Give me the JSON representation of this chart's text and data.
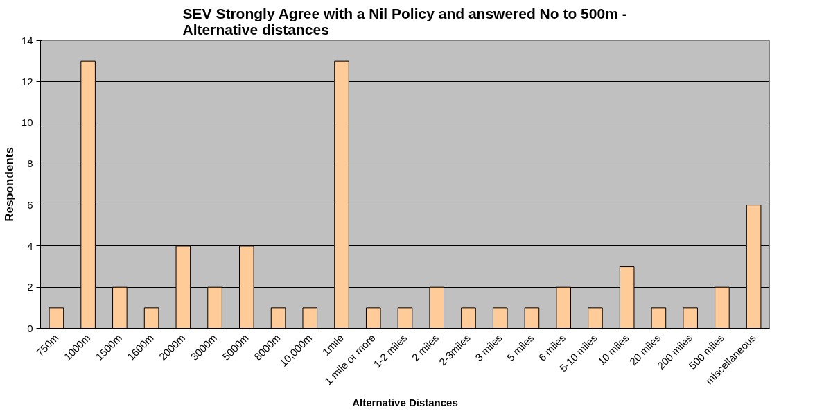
{
  "chart_data": {
    "type": "bar",
    "title": "SEV Strongly Agree with a Nil Policy and answered No to 500m -\nAlternative distances",
    "xlabel": "Alternative Distances",
    "ylabel": "Respondents",
    "categories": [
      "750m",
      "1000m",
      "1500m",
      "1600m",
      "2000m",
      "3000m",
      "5000m",
      "8000m",
      "10,000m",
      "1mile",
      "1 mile or more",
      "1-2 miles",
      "2 miles",
      "2-3miles",
      "3 miles",
      "5 miles",
      "6 miles",
      "5-10 miles",
      "10 miles",
      "20 miles",
      "200 miles",
      "500 miles",
      "miscellaneous"
    ],
    "values": [
      1,
      13,
      2,
      1,
      4,
      2,
      4,
      1,
      1,
      13,
      1,
      1,
      2,
      1,
      1,
      1,
      2,
      1,
      3,
      1,
      1,
      2,
      6
    ],
    "color": "#ffcc99",
    "ylim": [
      0,
      14
    ],
    "yticks": [
      0,
      2,
      4,
      6,
      8,
      10,
      12,
      14
    ],
    "grid": "y"
  }
}
